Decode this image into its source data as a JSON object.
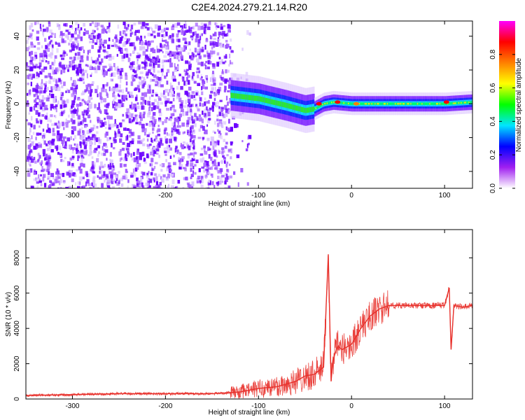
{
  "figure": {
    "title": "C2E4.2024.279.21.14.R20"
  },
  "chart_data": [
    {
      "id": "spectrogram",
      "type": "heatmap",
      "title": "",
      "xlabel": "Height of straight line (km)",
      "ylabel": "Frequency (Hz)",
      "xlim": [
        -350,
        130
      ],
      "ylim": [
        -50,
        49
      ],
      "xticks": [
        -300,
        -200,
        -100,
        0,
        100
      ],
      "xtick_labels": [
        "-300",
        "-200",
        "-100",
        "0",
        "100"
      ],
      "yticks": [
        -40,
        -20,
        0,
        20,
        40
      ],
      "ytick_labels": [
        "-40",
        "-20",
        "0",
        "20",
        "40"
      ],
      "colorbar": {
        "label": "Normalized spectral amplitude",
        "range": [
          0,
          1
        ],
        "ticks": [
          0.0,
          0.2,
          0.4,
          0.6,
          0.8
        ],
        "tick_labels": [
          "0.0",
          "0.2",
          "0.4",
          "0.6",
          "0.8"
        ],
        "colors": [
          "#ffffff",
          "#a020f0",
          "#0000ff",
          "#00e5ff",
          "#00ff00",
          "#ffff00",
          "#ff8000",
          "#ff0000",
          "#ff00ff"
        ]
      },
      "regions": [
        {
          "x_range": [
            -350,
            -130
          ],
          "y_range": [
            -50,
            49
          ],
          "amplitude": "low",
          "description_color": "#7b2cff"
        },
        {
          "x_range": [
            -130,
            -40
          ],
          "y_range": [
            -10,
            10
          ],
          "amplitude": "medium-high"
        },
        {
          "x_range": [
            -40,
            130
          ],
          "y_range": [
            -5,
            5
          ],
          "amplitude": "high"
        }
      ],
      "ridge": {
        "x": [
          -130,
          -100,
          -70,
          -50,
          -40,
          -30,
          -20,
          0,
          50,
          100,
          130
        ],
        "y": [
          5,
          3,
          -1,
          -4,
          -3,
          0,
          1,
          0,
          0,
          0,
          1
        ]
      },
      "peaks": [
        {
          "x": -35,
          "y": 0,
          "amplitude": 0.95
        },
        {
          "x": -15,
          "y": 1,
          "amplitude": 0.95
        },
        {
          "x": 5,
          "y": 0,
          "amplitude": 0.9
        },
        {
          "x": 102,
          "y": 1,
          "amplitude": 0.95
        }
      ]
    },
    {
      "id": "snr",
      "type": "line",
      "title": "",
      "xlabel": "Height of straight line (km)",
      "ylabel": "SNR (10 * v/v)",
      "xlim": [
        -350,
        130
      ],
      "ylim": [
        0,
        9600
      ],
      "xticks": [
        -300,
        -200,
        -100,
        0,
        100
      ],
      "xtick_labels": [
        "-300",
        "-200",
        "-100",
        "0",
        "100"
      ],
      "yticks": [
        0,
        2000,
        4000,
        6000,
        8000
      ],
      "ytick_labels": [
        "0",
        "2000",
        "4000",
        "6000",
        "8000"
      ],
      "color": "#e8302a",
      "series": [
        {
          "x": [
            -350,
            -300,
            -250,
            -200,
            -150,
            -120,
            -100,
            -80,
            -60,
            -50,
            -40,
            -30,
            -25,
            -22,
            -20,
            -15,
            -10,
            0,
            10,
            20,
            30,
            40,
            60,
            80,
            100,
            105,
            107,
            110,
            120,
            130
          ],
          "y": [
            200,
            250,
            300,
            300,
            300,
            400,
            600,
            700,
            1000,
            1300,
            1400,
            1800,
            8200,
            1000,
            2200,
            3000,
            2800,
            3100,
            4000,
            4700,
            5100,
            5300,
            5300,
            5300,
            5300,
            6300,
            2800,
            5300,
            5200,
            5300
          ]
        }
      ]
    }
  ]
}
